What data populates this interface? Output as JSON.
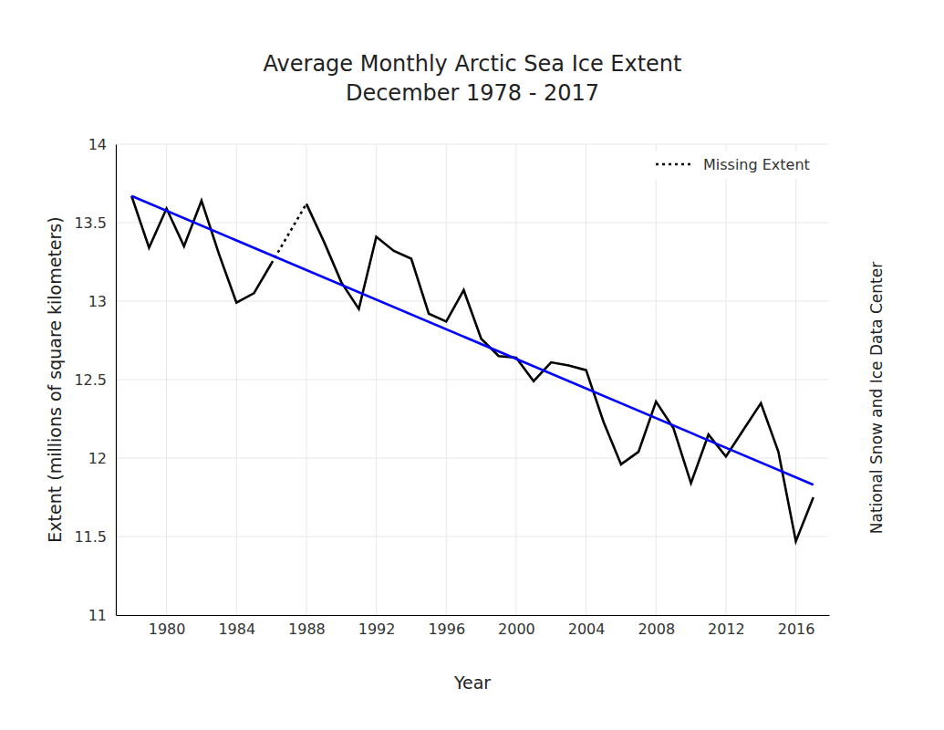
{
  "chart_data": {
    "type": "line",
    "title": "Average Monthly Arctic Sea Ice Extent",
    "subtitle": "December 1978 - 2017",
    "x_label": "Year",
    "y_label": "Extent (millions of square kilometers)",
    "source": "National Snow and Ice Data Center",
    "x": [
      1978,
      1979,
      1980,
      1981,
      1982,
      1983,
      1984,
      1985,
      1986,
      1987,
      1988,
      1989,
      1990,
      1991,
      1992,
      1993,
      1994,
      1995,
      1996,
      1997,
      1998,
      1999,
      2000,
      2001,
      2002,
      2003,
      2004,
      2005,
      2006,
      2007,
      2008,
      2009,
      2010,
      2011,
      2012,
      2013,
      2014,
      2015,
      2016,
      2017
    ],
    "series": [
      {
        "color": "#000000",
        "line_style": "solid",
        "values": [
          13.67,
          13.34,
          13.59,
          13.35,
          13.64,
          13.3,
          12.99,
          13.05,
          13.24,
          null,
          13.62,
          13.38,
          13.12,
          12.95,
          13.41,
          13.32,
          13.27,
          12.92,
          12.87,
          13.07,
          12.76,
          12.65,
          12.64,
          12.49,
          12.61,
          12.59,
          12.56,
          12.23,
          11.96,
          12.04,
          12.36,
          12.19,
          11.84,
          12.15,
          12.01,
          12.18,
          12.35,
          12.04,
          11.47,
          11.75
        ]
      },
      {
        "name": "Missing Extent",
        "color": "#000000",
        "line_style": "dotted",
        "x": [
          1986,
          1988
        ],
        "values": [
          13.24,
          13.62
        ]
      },
      {
        "color": "#0000ff",
        "line_style": "solid",
        "x": [
          1978,
          2017
        ],
        "values": [
          13.67,
          11.83
        ]
      }
    ],
    "xlim": [
      1977.1,
      2017.9
    ],
    "xticks": [
      1980,
      1984,
      1988,
      1992,
      1996,
      2000,
      2004,
      2008,
      2012,
      2016
    ],
    "ylim": [
      11,
      14
    ],
    "yticks": [
      11,
      11.5,
      12,
      12.5,
      13,
      13.5,
      14
    ],
    "grid": true,
    "legend": "top-right"
  }
}
